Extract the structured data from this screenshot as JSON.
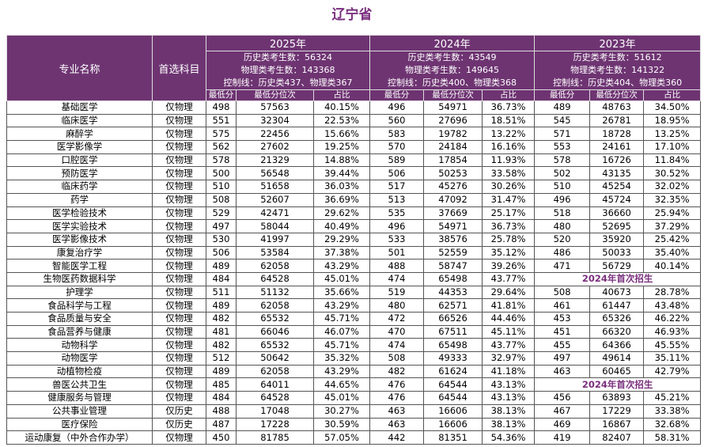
{
  "title": "辽宁省",
  "header": {
    "name": "专业名称",
    "subject": "首选科目",
    "years": [
      {
        "year": "2025年",
        "info": [
          "历史类考生数：56324",
          "物理类考生数：143368",
          "控制线：历史类437、物理类367"
        ]
      },
      {
        "year": "2024年",
        "info": [
          "历史类考生数：43549",
          "物理类考生数：149645",
          "控制线：历史类400、物理类368"
        ]
      },
      {
        "year": "2023年",
        "info": [
          "历史类考生数：51612",
          "物理类考生数：141322",
          "控制线：历史类404、物理类360"
        ]
      }
    ],
    "sub": [
      "最低分",
      "最低分位次",
      "占比"
    ]
  },
  "table": {
    "rows": [
      [
        "基础医学",
        "仅物理",
        "498",
        "57563",
        "40.15%",
        "496",
        "54971",
        "36.73%",
        "489",
        "48763",
        "34.50%"
      ],
      [
        "临床医学",
        "仅物理",
        "551",
        "32304",
        "22.53%",
        "560",
        "27696",
        "18.51%",
        "545",
        "26781",
        "18.95%"
      ],
      [
        "麻醉学",
        "仅物理",
        "575",
        "22456",
        "15.66%",
        "583",
        "19782",
        "13.22%",
        "571",
        "18728",
        "13.25%"
      ],
      [
        "医学影像学",
        "仅物理",
        "562",
        "27602",
        "19.25%",
        "570",
        "24184",
        "16.16%",
        "553",
        "24161",
        "17.10%"
      ],
      [
        "口腔医学",
        "仅物理",
        "578",
        "21329",
        "14.88%",
        "589",
        "17854",
        "11.93%",
        "578",
        "16726",
        "11.84%"
      ],
      [
        "预防医学",
        "仅物理",
        "500",
        "56548",
        "39.44%",
        "506",
        "50253",
        "33.58%",
        "502",
        "43135",
        "30.52%"
      ],
      [
        "临床药学",
        "仅物理",
        "510",
        "51658",
        "36.03%",
        "517",
        "45276",
        "30.26%",
        "510",
        "45254",
        "32.02%"
      ],
      [
        "药学",
        "仅物理",
        "508",
        "52607",
        "36.69%",
        "513",
        "47092",
        "31.47%",
        "496",
        "45724",
        "32.35%"
      ],
      [
        "医学检验技术",
        "仅物理",
        "529",
        "42471",
        "29.62%",
        "535",
        "37669",
        "25.17%",
        "518",
        "36660",
        "25.94%"
      ],
      [
        "医学实验技术",
        "仅物理",
        "497",
        "58044",
        "40.49%",
        "496",
        "54971",
        "36.73%",
        "480",
        "52695",
        "37.29%"
      ],
      [
        "医学影像技术",
        "仅物理",
        "530",
        "41997",
        "29.29%",
        "533",
        "38576",
        "25.78%",
        "520",
        "35920",
        "25.42%"
      ],
      [
        "康复治疗学",
        "仅物理",
        "506",
        "53584",
        "37.38%",
        "501",
        "52559",
        "35.12%",
        "486",
        "50033",
        "35.40%"
      ],
      [
        "智能医学工程",
        "仅物理",
        "489",
        "62058",
        "43.29%",
        "488",
        "58747",
        "39.26%",
        "471",
        "56729",
        "40.14%"
      ],
      [
        "生物医药数据科学",
        "仅物理",
        "484",
        "64528",
        "45.01%",
        "474",
        "65498",
        "43.77%",
        "2024年首次招生"
      ],
      [
        "护理学",
        "仅物理",
        "511",
        "51132",
        "35.66%",
        "519",
        "44353",
        "29.64%",
        "508",
        "40673",
        "28.78%"
      ],
      [
        "食品科学与工程",
        "仅物理",
        "489",
        "62058",
        "43.29%",
        "480",
        "62571",
        "41.81%",
        "461",
        "61447",
        "43.48%"
      ],
      [
        "食品质量与安全",
        "仅物理",
        "482",
        "65532",
        "45.71%",
        "472",
        "66526",
        "44.46%",
        "453",
        "65326",
        "46.22%"
      ],
      [
        "食品营养与健康",
        "仅物理",
        "481",
        "66046",
        "46.07%",
        "470",
        "67511",
        "45.11%",
        "451",
        "66320",
        "46.93%"
      ],
      [
        "动物科学",
        "仅物理",
        "482",
        "65532",
        "45.71%",
        "474",
        "65498",
        "43.77%",
        "455",
        "64366",
        "45.55%"
      ],
      [
        "动物医学",
        "仅物理",
        "512",
        "50642",
        "35.32%",
        "508",
        "49333",
        "32.97%",
        "497",
        "49614",
        "35.11%"
      ],
      [
        "动植物检疫",
        "仅物理",
        "489",
        "62058",
        "43.29%",
        "482",
        "61624",
        "41.18%",
        "463",
        "60465",
        "42.79%"
      ],
      [
        "兽医公共卫生",
        "仅物理",
        "485",
        "64011",
        "44.65%",
        "476",
        "64544",
        "43.13%",
        "2024年首次招生"
      ],
      [
        "健康服务与管理",
        "仅物理",
        "484",
        "64528",
        "45.01%",
        "476",
        "64544",
        "43.13%",
        "456",
        "63893",
        "45.21%"
      ],
      [
        "公共事业管理",
        "仅历史",
        "488",
        "17048",
        "30.27%",
        "463",
        "16606",
        "38.13%",
        "467",
        "17229",
        "33.38%"
      ],
      [
        "医疗保险",
        "仅历史",
        "487",
        "17228",
        "30.59%",
        "463",
        "16606",
        "38.13%",
        "469",
        "16867",
        "32.68%"
      ],
      [
        "运动康复（中外合作办学）",
        "仅物理",
        "450",
        "81785",
        "57.05%",
        "442",
        "81351",
        "54.36%",
        "419",
        "82407",
        "58.31%"
      ]
    ]
  }
}
